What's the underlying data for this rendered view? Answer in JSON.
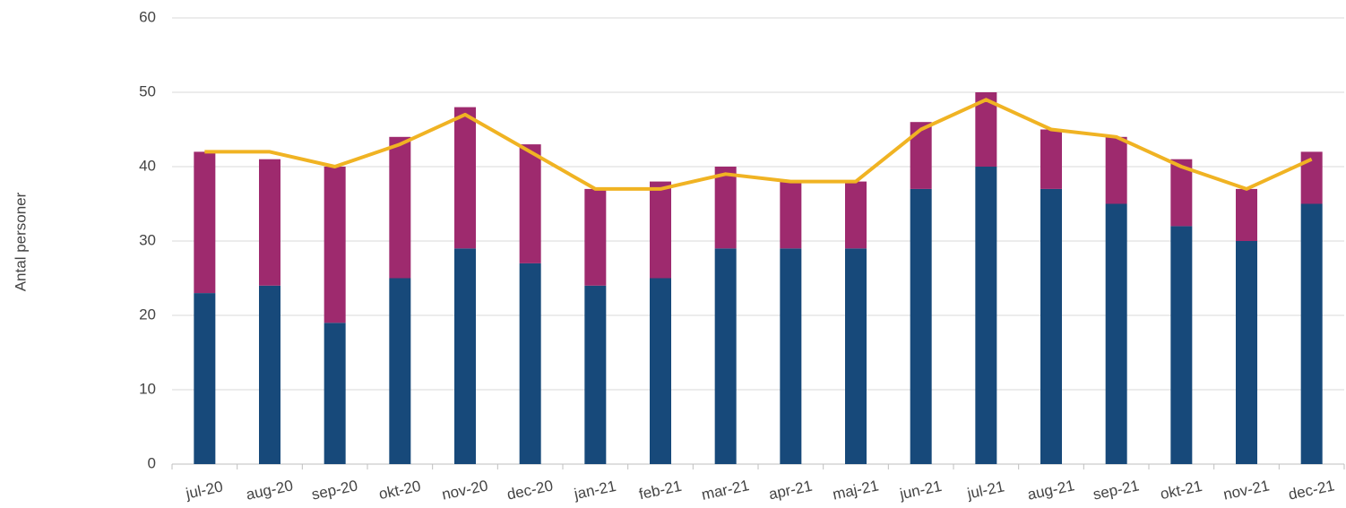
{
  "chart_data": {
    "type": "bar",
    "stacked": true,
    "y_label": "Antal personer",
    "categories": [
      "jul-20",
      "aug-20",
      "sep-20",
      "okt-20",
      "nov-20",
      "dec-20",
      "jan-21",
      "feb-21",
      "mar-21",
      "apr-21",
      "maj-21",
      "jun-21",
      "jul-21",
      "aug-21",
      "sep-21",
      "okt-21",
      "nov-21",
      "dec-21"
    ],
    "series": [
      {
        "color": "#17497a",
        "values": [
          23,
          24,
          19,
          25,
          29,
          27,
          24,
          25,
          29,
          29,
          29,
          37,
          40,
          37,
          35,
          32,
          30,
          35
        ]
      },
      {
        "color": "#9e2a6e",
        "values": [
          19,
          17,
          21,
          19,
          19,
          16,
          13,
          13,
          11,
          9,
          9,
          9,
          10,
          8,
          9,
          9,
          7,
          7
        ]
      },
      {
        "type": "line",
        "color": "#f0b323",
        "values": [
          42,
          42,
          40,
          43,
          47,
          42,
          37,
          37,
          39,
          38,
          38,
          45,
          49,
          45,
          44,
          40,
          37,
          41
        ]
      }
    ],
    "ylim": [
      0,
      60
    ],
    "yticks": [
      0,
      10,
      20,
      30,
      40,
      50,
      60
    ],
    "grid": true
  }
}
